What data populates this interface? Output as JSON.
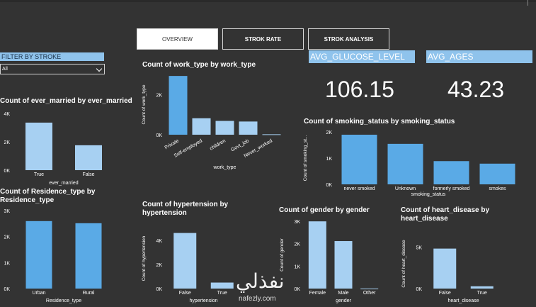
{
  "tabs": [
    {
      "label": "OVERVIEW",
      "active": true
    },
    {
      "label": "STROK RATE",
      "active": false
    },
    {
      "label": "STROK ANALYSIS",
      "active": false
    }
  ],
  "filter": {
    "title": "FILTER BY STROKE",
    "selected": "All"
  },
  "kpis": [
    {
      "label": "AVG_GLUCOSE_LEVEL",
      "value": "106.15"
    },
    {
      "label": "AVG_AGES",
      "value": "43.23"
    }
  ],
  "colors": {
    "bar_dark": "#5aaae6",
    "bar_light": "#a7d0f2",
    "label_bg": "#8fc3ec"
  },
  "watermark": {
    "arabic": "نفذلي",
    "url": "nafezly.com"
  },
  "chart_data": [
    {
      "id": "work_type",
      "type": "bar",
      "title": "Count of work_type by work_type",
      "xlabel": "work_type",
      "ylabel": "Count of work_type",
      "categories": [
        "Private",
        "Self-employed",
        "children",
        "Govt_job",
        "Never_worked"
      ],
      "values": [
        2925,
        819,
        687,
        657,
        22
      ],
      "ylim": [
        0,
        3000
      ],
      "yticks": [
        {
          "v": 0,
          "l": "0K"
        },
        {
          "v": 2000,
          "l": "2K"
        }
      ]
    },
    {
      "id": "ever_married",
      "type": "bar",
      "title": "Count of ever_married by ever_married",
      "xlabel": "ever_married",
      "ylabel": "",
      "categories": [
        "True",
        "False"
      ],
      "values": [
        3353,
        1757
      ],
      "ylim": [
        0,
        4000
      ],
      "yticks": [
        {
          "v": 0,
          "l": "0K"
        },
        {
          "v": 2000,
          "l": "2K"
        },
        {
          "v": 4000,
          "l": "4K"
        }
      ]
    },
    {
      "id": "smoking_status",
      "type": "bar",
      "title": "Count of smoking_status by smoking_status",
      "xlabel": "smoking_status",
      "ylabel": "Count of smoking_st...",
      "categories": [
        "never smoked",
        "Unknown",
        "formerly smoked",
        "smokes"
      ],
      "values": [
        1892,
        1544,
        885,
        789
      ],
      "ylim": [
        0,
        2000
      ],
      "yticks": [
        {
          "v": 0,
          "l": "0K"
        },
        {
          "v": 1000,
          "l": "1K"
        },
        {
          "v": 2000,
          "l": "2K"
        }
      ]
    },
    {
      "id": "residence_type",
      "type": "bar",
      "title": "Count of Residence_type by Residence_type",
      "xlabel": "Residence_type",
      "ylabel": "",
      "categories": [
        "Urban",
        "Rural"
      ],
      "values": [
        2596,
        2514
      ],
      "ylim": [
        0,
        3000
      ],
      "yticks": [
        {
          "v": 0,
          "l": "0K"
        },
        {
          "v": 1000,
          "l": "1K"
        },
        {
          "v": 2000,
          "l": "2K"
        },
        {
          "v": 3000,
          "l": "3K"
        }
      ]
    },
    {
      "id": "hypertension",
      "type": "bar",
      "title": "Count of hypertension by hypertension",
      "xlabel": "hypertension",
      "ylabel": "Count of hypertension",
      "categories": [
        "False",
        "True"
      ],
      "values": [
        4612,
        498
      ],
      "ylim": [
        0,
        5000
      ],
      "yticks": [
        {
          "v": 0,
          "l": "0K"
        },
        {
          "v": 2000,
          "l": "2K"
        },
        {
          "v": 4000,
          "l": "4K"
        }
      ]
    },
    {
      "id": "gender",
      "type": "bar",
      "title": "Count of gender by gender",
      "xlabel": "gender",
      "ylabel": "Count of gender",
      "categories": [
        "Female",
        "Male",
        "Other"
      ],
      "values": [
        2994,
        2115,
        1
      ],
      "ylim": [
        0,
        3000
      ],
      "yticks": [
        {
          "v": 0,
          "l": "0K"
        },
        {
          "v": 1000,
          "l": "1K"
        },
        {
          "v": 2000,
          "l": "2K"
        },
        {
          "v": 3000,
          "l": "3K"
        }
      ]
    },
    {
      "id": "heart_disease",
      "type": "bar",
      "title": "Count of heart_disease by heart_disease",
      "xlabel": "heart_disease",
      "ylabel": "Count of heart_disease",
      "categories": [
        "False",
        "True"
      ],
      "values": [
        4834,
        276
      ],
      "ylim": [
        0,
        6000
      ],
      "yticks": [
        {
          "v": 0,
          "l": "0K"
        },
        {
          "v": 5000,
          "l": "5K"
        }
      ]
    }
  ]
}
